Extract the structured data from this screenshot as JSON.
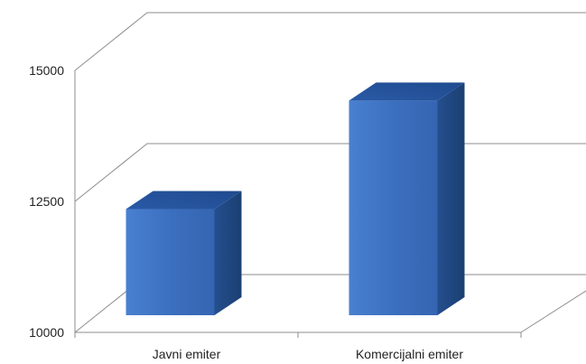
{
  "chart_data": {
    "type": "bar",
    "title": "",
    "xlabel": "",
    "ylabel": "",
    "categories": [
      "Javni emiter",
      "Komercijalni emiter"
    ],
    "values": [
      12200,
      14450
    ],
    "ylim": [
      10000,
      15000
    ],
    "yticks": [
      "10000",
      "12500",
      "15000"
    ],
    "grid": true,
    "legend": "none",
    "style": "3d-column",
    "colors": {
      "bar_front": "#3b6fbf",
      "bar_top": "#2a5aa6",
      "bar_side": "#1f4a86",
      "grid": "#8c8c8c"
    }
  }
}
